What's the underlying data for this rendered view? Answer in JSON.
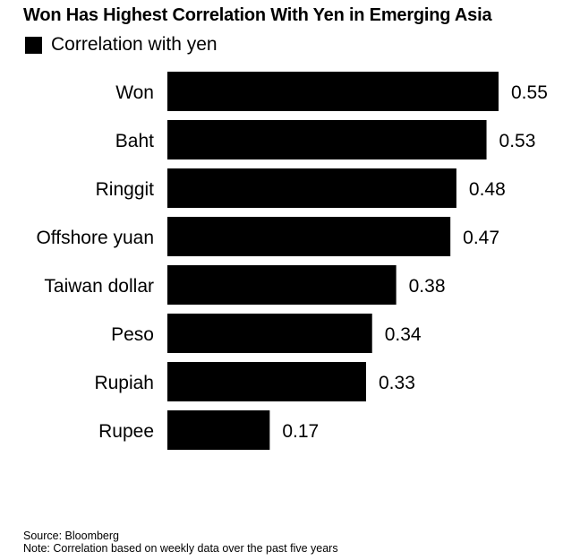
{
  "chart_data": {
    "type": "bar",
    "orientation": "horizontal",
    "title": "Won Has Highest Correlation With Yen in Emerging Asia",
    "legend": [
      {
        "name": "Correlation with yen",
        "color": "#000000"
      }
    ],
    "categories": [
      "Won",
      "Baht",
      "Ringgit",
      "Offshore yuan",
      "Taiwan dollar",
      "Peso",
      "Rupiah",
      "Rupee"
    ],
    "values": [
      0.55,
      0.53,
      0.48,
      0.47,
      0.38,
      0.34,
      0.33,
      0.17
    ],
    "value_labels": [
      "0.55",
      "0.53",
      "0.48",
      "0.47",
      "0.38",
      "0.34",
      "0.33",
      "0.17"
    ],
    "xlim": [
      0,
      0.55
    ],
    "grid": false,
    "bar_color": "#000000"
  },
  "footer": {
    "source": "Source: Bloomberg",
    "note": "Note: Correlation based on weekly data over the past five years"
  }
}
